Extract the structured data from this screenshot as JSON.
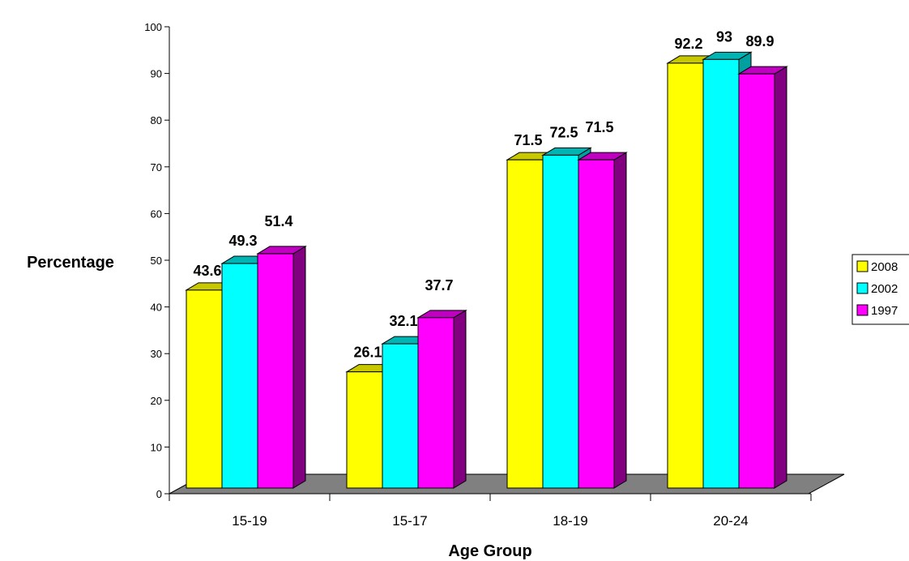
{
  "chart_data": {
    "type": "bar",
    "categories": [
      "15-19",
      "15-17",
      "18-19",
      "20-24"
    ],
    "series": [
      {
        "name": "2008",
        "values": [
          43.6,
          26.1,
          71.5,
          92.2
        ],
        "color": "#ffff00",
        "side_color": "#c8c800",
        "top_color": "#c8c800"
      },
      {
        "name": "2002",
        "values": [
          49.3,
          32.1,
          72.5,
          93
        ],
        "color": "#00ffff",
        "side_color": "#00a0a0",
        "top_color": "#00b4b4"
      },
      {
        "name": "1997",
        "values": [
          51.4,
          37.7,
          71.5,
          89.9
        ],
        "color": "#ff00ff",
        "side_color": "#800080",
        "top_color": "#c000c0"
      }
    ],
    "data_labels": [
      [
        "43.6",
        "26.1",
        "71.5",
        "92.2"
      ],
      [
        "49.3",
        "32.1",
        "72.5",
        "93"
      ],
      [
        "51.4",
        "37.7",
        "71.5",
        "89.9"
      ]
    ],
    "yticks": [
      "0",
      "10",
      "20",
      "30",
      "40",
      "50",
      "60",
      "70",
      "80",
      "90",
      "100"
    ],
    "ylim": [
      0,
      100
    ],
    "xlabel": "Age Group",
    "ylabel": "Percentage",
    "legend_position": "right",
    "floor_color": "#808080",
    "grid": false
  }
}
